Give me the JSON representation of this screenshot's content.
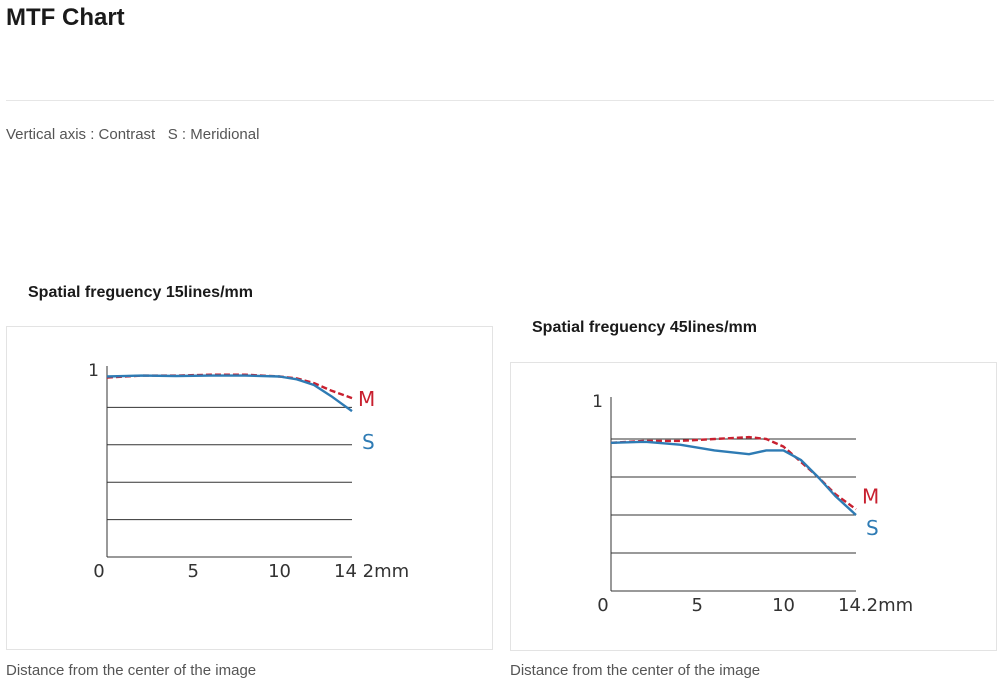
{
  "page": {
    "title": "MTF Chart",
    "axis_note": "Vertical axis : Contrast   S : Meridional"
  },
  "chart_data": [
    {
      "type": "line",
      "title": "Spatial freguency 15lines/mm",
      "xlabel": "Distance from the center of the image",
      "ylabel": "1",
      "origin_label": "0",
      "xlim": [
        0,
        14.2
      ],
      "ylim": [
        0,
        1
      ],
      "x_ticks": [
        {
          "value": 5,
          "label": "5"
        },
        {
          "value": 10,
          "label": "10"
        },
        {
          "value": 14.2,
          "label": "14 2mm"
        }
      ],
      "y_gridlines": [
        0.2,
        0.4,
        0.6,
        0.8
      ],
      "grid": true,
      "series": [
        {
          "name": "M",
          "color": "#c8202f",
          "dash": true,
          "x": [
            0,
            2,
            4,
            6,
            8,
            10,
            11,
            12,
            13,
            14.2
          ],
          "y": [
            0.96,
            0.97,
            0.97,
            0.975,
            0.975,
            0.965,
            0.955,
            0.93,
            0.89,
            0.85
          ]
        },
        {
          "name": "S",
          "color": "#2e7bb4",
          "dash": false,
          "x": [
            0,
            2,
            4,
            6,
            8,
            10,
            11,
            12,
            13,
            13.6,
            14.2
          ],
          "y": [
            0.965,
            0.97,
            0.968,
            0.97,
            0.97,
            0.965,
            0.95,
            0.92,
            0.86,
            0.82,
            0.78
          ]
        }
      ]
    },
    {
      "type": "line",
      "title": "Spatial freguency 45lines/mm",
      "xlabel": "Distance from the center of the image",
      "ylabel": "1",
      "origin_label": "0",
      "xlim": [
        0,
        14.2
      ],
      "ylim": [
        0,
        1
      ],
      "x_ticks": [
        {
          "value": 5,
          "label": "5"
        },
        {
          "value": 10,
          "label": "10"
        },
        {
          "value": 14.2,
          "label": "14.2mm"
        }
      ],
      "y_gridlines": [
        0.2,
        0.4,
        0.6,
        0.8
      ],
      "grid": true,
      "series": [
        {
          "name": "M",
          "color": "#c8202f",
          "dash": true,
          "x": [
            0,
            2,
            4,
            6,
            8,
            9,
            10,
            11,
            12,
            13,
            14.2
          ],
          "y": [
            0.78,
            0.79,
            0.79,
            0.8,
            0.81,
            0.8,
            0.76,
            0.68,
            0.6,
            0.51,
            0.43
          ]
        },
        {
          "name": "S",
          "color": "#2e7bb4",
          "dash": false,
          "x": [
            0,
            2,
            4,
            6,
            8,
            9,
            10,
            11,
            12,
            13,
            14.2
          ],
          "y": [
            0.78,
            0.785,
            0.77,
            0.74,
            0.72,
            0.74,
            0.74,
            0.69,
            0.6,
            0.5,
            0.4
          ]
        }
      ]
    }
  ]
}
